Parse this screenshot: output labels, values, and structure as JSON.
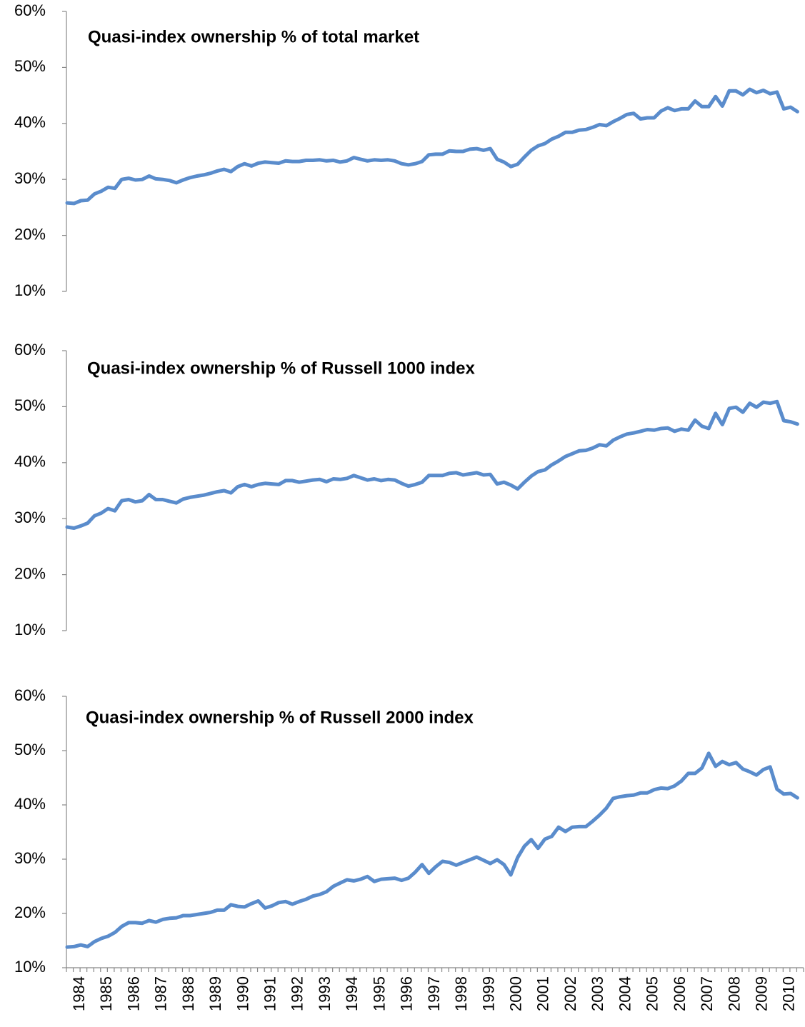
{
  "chart_data": [
    {
      "type": "line",
      "title": "Quasi-index ownership % of total market",
      "color": "#5a8ccc",
      "ylim": [
        10,
        60
      ],
      "yticks": [
        {
          "value": 10,
          "label": "10%"
        },
        {
          "value": 20,
          "label": "20%"
        },
        {
          "value": 30,
          "label": "30%"
        },
        {
          "value": 40,
          "label": "40%"
        },
        {
          "value": 50,
          "label": "50%"
        },
        {
          "value": 60,
          "label": "60%"
        }
      ],
      "values": [
        25.8,
        25.7,
        26.2,
        26.3,
        27.4,
        27.9,
        28.6,
        28.4,
        30.0,
        30.2,
        29.9,
        30.0,
        30.6,
        30.1,
        30.0,
        29.8,
        29.4,
        29.9,
        30.3,
        30.6,
        30.8,
        31.1,
        31.5,
        31.8,
        31.4,
        32.3,
        32.8,
        32.4,
        32.9,
        33.1,
        33.0,
        32.9,
        33.3,
        33.2,
        33.2,
        33.4,
        33.4,
        33.5,
        33.3,
        33.4,
        33.1,
        33.3,
        33.9,
        33.6,
        33.3,
        33.5,
        33.4,
        33.5,
        33.3,
        32.8,
        32.6,
        32.8,
        33.2,
        34.4,
        34.5,
        34.5,
        35.1,
        35.0,
        35.0,
        35.4,
        35.5,
        35.2,
        35.5,
        33.6,
        33.1,
        32.3,
        32.7,
        34.0,
        35.2,
        36.0,
        36.4,
        37.2,
        37.7,
        38.4,
        38.4,
        38.8,
        38.9,
        39.3,
        39.8,
        39.6,
        40.3,
        40.9,
        41.6,
        41.8,
        40.8,
        41.0,
        41.0,
        42.2,
        42.8,
        42.3,
        42.6,
        42.6,
        44.0,
        43.0,
        43.0,
        44.8,
        43.1,
        45.8,
        45.8,
        45.1,
        46.1,
        45.5,
        45.9,
        45.3,
        45.6,
        42.6,
        42.9,
        42.1
      ]
    },
    {
      "type": "line",
      "title": "Quasi-index ownership % of Russell 1000 index",
      "color": "#5a8ccc",
      "ylim": [
        10,
        60
      ],
      "yticks": [
        {
          "value": 10,
          "label": "10%"
        },
        {
          "value": 20,
          "label": "20%"
        },
        {
          "value": 30,
          "label": "30%"
        },
        {
          "value": 40,
          "label": "40%"
        },
        {
          "value": 50,
          "label": "50%"
        },
        {
          "value": 60,
          "label": "60%"
        }
      ],
      "values": [
        28.5,
        28.3,
        28.7,
        29.2,
        30.5,
        31.0,
        31.8,
        31.4,
        33.2,
        33.4,
        33.0,
        33.2,
        34.3,
        33.4,
        33.4,
        33.1,
        32.8,
        33.5,
        33.8,
        34.0,
        34.2,
        34.5,
        34.8,
        35.0,
        34.6,
        35.7,
        36.1,
        35.7,
        36.1,
        36.3,
        36.2,
        36.1,
        36.8,
        36.8,
        36.5,
        36.7,
        36.9,
        37.0,
        36.6,
        37.1,
        37.0,
        37.2,
        37.7,
        37.3,
        36.9,
        37.1,
        36.8,
        37.0,
        36.9,
        36.3,
        35.8,
        36.1,
        36.5,
        37.7,
        37.7,
        37.7,
        38.1,
        38.2,
        37.8,
        38.0,
        38.2,
        37.8,
        37.9,
        36.2,
        36.5,
        36.0,
        35.3,
        36.5,
        37.6,
        38.4,
        38.7,
        39.6,
        40.3,
        41.1,
        41.6,
        42.1,
        42.2,
        42.6,
        43.2,
        43.0,
        44.0,
        44.6,
        45.1,
        45.3,
        45.6,
        45.9,
        45.8,
        46.1,
        46.2,
        45.6,
        46.0,
        45.8,
        47.6,
        46.5,
        46.1,
        48.8,
        46.8,
        49.7,
        49.9,
        49.0,
        50.6,
        49.9,
        50.8,
        50.6,
        50.9,
        47.5,
        47.3,
        46.9
      ]
    },
    {
      "type": "line",
      "title": "Quasi-index ownership % of Russell 2000 index",
      "color": "#5a8ccc",
      "ylim": [
        10,
        60
      ],
      "yticks": [
        {
          "value": 10,
          "label": "10%"
        },
        {
          "value": 20,
          "label": "20%"
        },
        {
          "value": 30,
          "label": "30%"
        },
        {
          "value": 40,
          "label": "40%"
        },
        {
          "value": 50,
          "label": "50%"
        },
        {
          "value": 60,
          "label": "60%"
        }
      ],
      "categories": [
        "1984",
        null,
        null,
        null,
        "1985",
        null,
        null,
        null,
        "1986",
        null,
        null,
        null,
        "1987",
        null,
        null,
        null,
        "1988",
        null,
        null,
        null,
        "1989",
        null,
        null,
        null,
        "1990",
        null,
        null,
        null,
        "1991",
        null,
        null,
        null,
        "1992",
        null,
        null,
        null,
        "1993",
        null,
        null,
        null,
        "1994",
        null,
        null,
        null,
        "1995",
        null,
        null,
        null,
        "1996",
        null,
        null,
        null,
        "1997",
        null,
        null,
        null,
        "1998",
        null,
        null,
        null,
        "1999",
        null,
        null,
        null,
        "2000",
        null,
        null,
        null,
        "2001",
        null,
        null,
        null,
        "2002",
        null,
        null,
        null,
        "2003",
        null,
        null,
        null,
        "2004",
        null,
        null,
        null,
        "2005",
        null,
        null,
        null,
        "2006",
        null,
        null,
        null,
        "2007",
        null,
        null,
        null,
        "2008",
        null,
        null,
        null,
        "2009",
        null,
        null,
        null,
        "2010",
        null,
        null,
        null
      ],
      "values": [
        13.8,
        13.9,
        14.2,
        13.9,
        14.8,
        15.4,
        15.8,
        16.5,
        17.6,
        18.3,
        18.3,
        18.2,
        18.7,
        18.4,
        18.9,
        19.1,
        19.2,
        19.6,
        19.6,
        19.8,
        20.0,
        20.2,
        20.6,
        20.6,
        21.6,
        21.3,
        21.2,
        21.8,
        22.3,
        21.0,
        21.4,
        22.0,
        22.2,
        21.7,
        22.2,
        22.6,
        23.2,
        23.5,
        24.0,
        25.0,
        25.6,
        26.2,
        26.0,
        26.3,
        26.8,
        25.9,
        26.3,
        26.4,
        26.5,
        26.1,
        26.5,
        27.6,
        29.0,
        27.4,
        28.6,
        29.6,
        29.4,
        28.9,
        29.4,
        29.9,
        30.4,
        29.8,
        29.2,
        29.9,
        29.0,
        27.1,
        30.3,
        32.4,
        33.6,
        32.0,
        33.7,
        34.2,
        35.9,
        35.1,
        35.9,
        36.0,
        36.0,
        37.0,
        38.1,
        39.4,
        41.2,
        41.5,
        41.7,
        41.8,
        42.2,
        42.2,
        42.8,
        43.1,
        43.0,
        43.5,
        44.4,
        45.8,
        45.8,
        46.8,
        49.5,
        47.1,
        48.0,
        47.4,
        47.8,
        46.6,
        46.1,
        45.5,
        46.5,
        47.0,
        42.9,
        42.0,
        42.1,
        41.3
      ]
    }
  ]
}
